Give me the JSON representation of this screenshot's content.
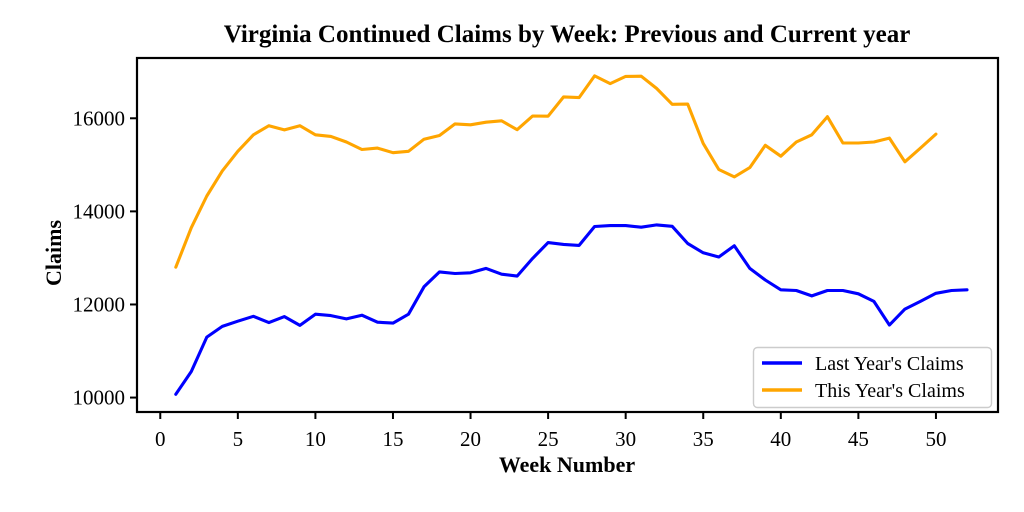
{
  "figure": {
    "background_color": "#ffffff",
    "frame_color": "#000000"
  },
  "chart_data": {
    "type": "line",
    "title": "Virginia Continued Claims by Week: Previous and Current year",
    "xlabel": "Week Number",
    "ylabel": "Claims",
    "grid": false,
    "xlim": [
      -1.5,
      54
    ],
    "ylim": [
      9690,
      17295
    ],
    "xticks": [
      0,
      5,
      10,
      15,
      20,
      25,
      30,
      35,
      40,
      45,
      50
    ],
    "yticks": [
      10000,
      12000,
      14000,
      16000
    ],
    "legend": {
      "position": "lower right",
      "border_color": "#cccccc"
    },
    "series": [
      {
        "name": "Last Year's Claims",
        "color": "#0000ff",
        "x": [
          1,
          2,
          3,
          4,
          5,
          6,
          7,
          8,
          9,
          10,
          11,
          12,
          13,
          14,
          15,
          16,
          17,
          18,
          19,
          20,
          21,
          22,
          23,
          24,
          25,
          26,
          27,
          28,
          29,
          30,
          31,
          32,
          33,
          34,
          35,
          36,
          37,
          38,
          39,
          40,
          41,
          42,
          43,
          44,
          45,
          46,
          47,
          48,
          49,
          50,
          51,
          52
        ],
        "values": [
          10070,
          10560,
          11300,
          11530,
          11640,
          11745,
          11610,
          11740,
          11550,
          11790,
          11760,
          11690,
          11770,
          11620,
          11600,
          11790,
          12380,
          12700,
          12665,
          12680,
          12775,
          12650,
          12610,
          12990,
          13330,
          13290,
          13270,
          13675,
          13695,
          13695,
          13660,
          13710,
          13680,
          13310,
          13110,
          13020,
          13260,
          12775,
          12525,
          12315,
          12300,
          12185,
          12300,
          12300,
          12230,
          12065,
          11560,
          11900,
          12065,
          12240,
          12300,
          12315
        ]
      },
      {
        "name": "This Year's Claims",
        "color": "#ffa500",
        "x": [
          1,
          2,
          3,
          4,
          5,
          6,
          7,
          8,
          9,
          10,
          11,
          12,
          13,
          14,
          15,
          16,
          17,
          18,
          19,
          20,
          21,
          22,
          23,
          24,
          25,
          26,
          27,
          28,
          29,
          30,
          31,
          32,
          33,
          34,
          35,
          36,
          37,
          38,
          39,
          40,
          41,
          42,
          43,
          44,
          45,
          46,
          47,
          48,
          49,
          50
        ],
        "values": [
          12800,
          13650,
          14330,
          14870,
          15290,
          15645,
          15840,
          15750,
          15840,
          15645,
          15610,
          15490,
          15330,
          15360,
          15260,
          15290,
          15550,
          15630,
          15880,
          15860,
          15915,
          15945,
          15755,
          16050,
          16045,
          16460,
          16445,
          16910,
          16745,
          16900,
          16905,
          16640,
          16300,
          16305,
          15460,
          14900,
          14740,
          14940,
          15420,
          15185,
          15490,
          15645,
          16035,
          15470,
          15470,
          15490,
          15575,
          15065,
          15360,
          15660
        ]
      }
    ]
  }
}
